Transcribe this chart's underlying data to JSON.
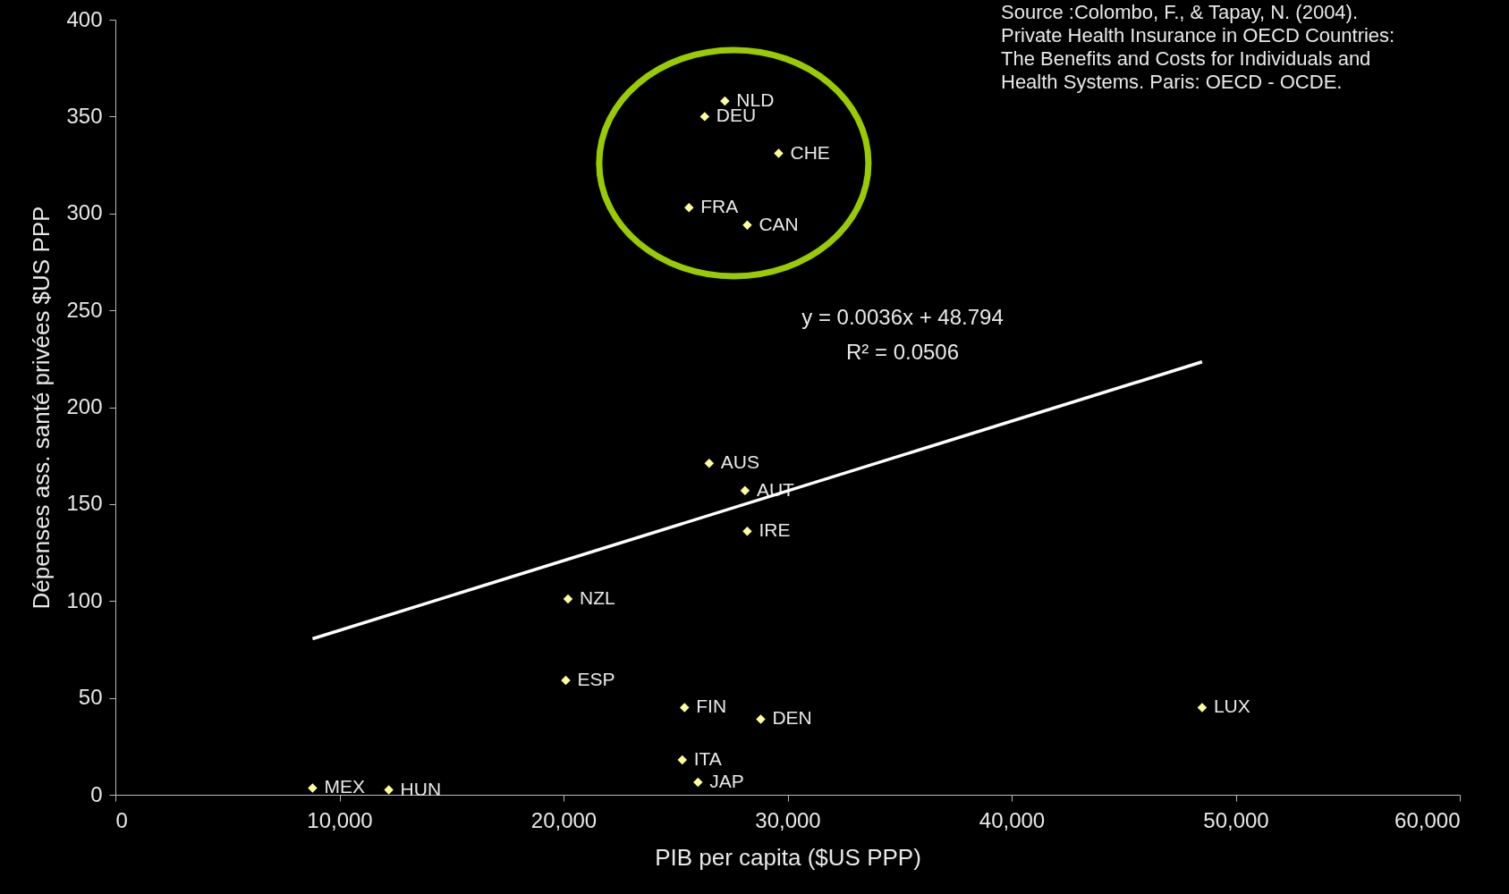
{
  "chart_data": {
    "type": "scatter",
    "xlabel": "PIB per capita ($US PPP)",
    "ylabel": "Dépenses ass. santé privées $US PPP",
    "xlim": [
      0,
      60000
    ],
    "xticks": [
      0,
      {
        "value": 10000,
        "label": "10,000"
      },
      {
        "value": 20000,
        "label": "20,000"
      },
      {
        "value": 30000,
        "label": "30,000"
      },
      {
        "value": 40000,
        "label": "40,000"
      },
      {
        "value": 50000,
        "label": "50,000"
      },
      {
        "value": 60000,
        "label": "60,000"
      }
    ],
    "ylim": [
      0,
      400
    ],
    "yticks": [
      0,
      50,
      100,
      150,
      200,
      250,
      300,
      350,
      400
    ],
    "marker": "diamond",
    "grid": false,
    "legend": false,
    "annotations": [
      "y = 0.0036x + 48.794",
      "R² = 0.0506",
      "Source :Colombo, F., & Tapay, N. (2004). Private Health Insurance in OECD Countries: The Benefits and Costs for Individuals and Health Systems. Paris: OECD - OCDE."
    ],
    "series": [
      {
        "name": "MEX",
        "color": "#ffff99",
        "x": [
          8800
        ],
        "values": [
          3.5
        ]
      },
      {
        "name": "HUN",
        "color": "#ffff99",
        "x": [
          12200
        ],
        "values": [
          2.5
        ]
      },
      {
        "name": "ITA",
        "color": "#ffff99",
        "x": [
          25300
        ],
        "values": [
          18
        ]
      },
      {
        "name": "JAP",
        "color": "#ffff99",
        "x": [
          26000
        ],
        "values": [
          6.5
        ]
      },
      {
        "name": "FIN",
        "color": "#ffff99",
        "x": [
          25400
        ],
        "values": [
          45
        ]
      },
      {
        "name": "DEN",
        "color": "#ffff99",
        "x": [
          28800
        ],
        "values": [
          39
        ]
      },
      {
        "name": "ESP",
        "color": "#ffff99",
        "x": [
          20100
        ],
        "values": [
          59
        ]
      },
      {
        "name": "NZL",
        "color": "#ffff99",
        "x": [
          20200
        ],
        "values": [
          101
        ]
      },
      {
        "name": "LUX",
        "color": "#ffff99",
        "x": [
          48500
        ],
        "values": [
          45
        ]
      },
      {
        "name": "AUS",
        "color": "#ffff99",
        "x": [
          26500
        ],
        "values": [
          171
        ]
      },
      {
        "name": "AUT",
        "color": "#ffff99",
        "x": [
          28100
        ],
        "values": [
          157
        ]
      },
      {
        "name": "IRE",
        "color": "#ffff99",
        "x": [
          28200
        ],
        "values": [
          136
        ]
      },
      {
        "name": "NLD",
        "color": "#ffff99",
        "x": [
          27200
        ],
        "values": [
          358
        ]
      },
      {
        "name": "DEU",
        "color": "#ffff99",
        "x": [
          26300
        ],
        "values": [
          350
        ]
      },
      {
        "name": "CHE",
        "color": "#ffff99",
        "x": [
          29600
        ],
        "values": [
          331
        ]
      },
      {
        "name": "FRA",
        "color": "#ffff99",
        "x": [
          25600
        ],
        "values": [
          303
        ]
      },
      {
        "name": "CAN",
        "color": "#ffff99",
        "x": [
          28200
        ],
        "values": [
          294
        ]
      },
      {
        "type": "line",
        "marker": "none",
        "color": "#ffffff",
        "x": [
          8800,
          48500
        ],
        "values": [
          80.5,
          223.4
        ]
      }
    ]
  }
}
